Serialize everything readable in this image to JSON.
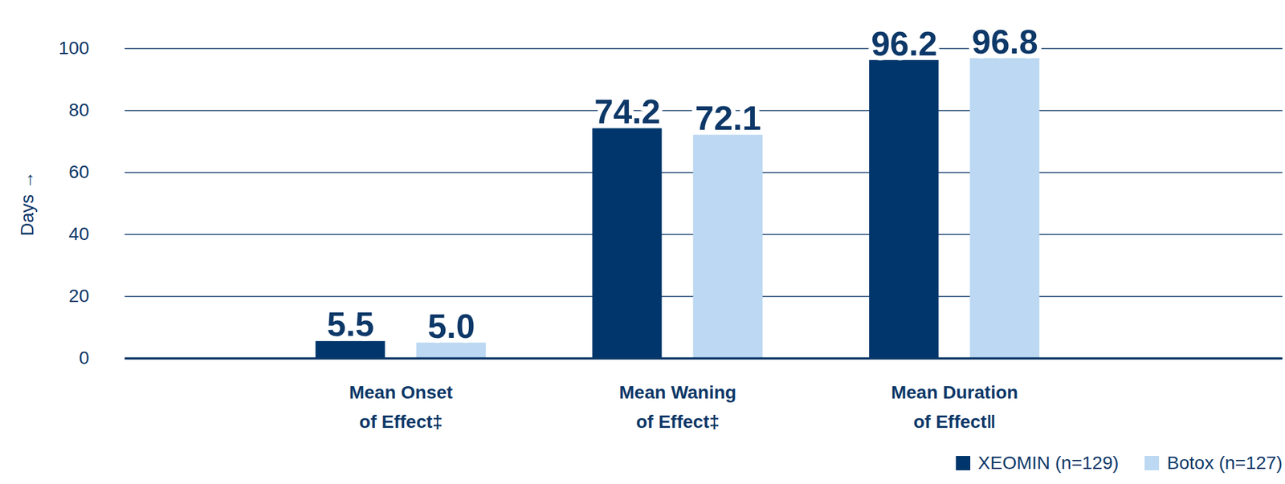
{
  "chart_data": {
    "type": "bar",
    "categories": [
      "Mean Onset\nof Effect‡",
      "Mean Waning\nof Effect‡",
      "Mean Duration\nof Effect‖"
    ],
    "series": [
      {
        "name": "XEOMIN (n=129)",
        "color": "#00366b",
        "values": [
          5.5,
          74.2,
          96.2
        ],
        "value_labels": [
          "5.5",
          "74.2",
          "96.2"
        ]
      },
      {
        "name": "Botox (n=127)",
        "color": "#bcd8f2",
        "values": [
          5.0,
          72.1,
          96.8
        ],
        "value_labels": [
          "5.0",
          "72.1",
          "96.8"
        ]
      }
    ],
    "y_label": "Days",
    "ylim": [
      0,
      100
    ],
    "yticks": [
      0,
      20,
      40,
      60,
      80,
      100
    ],
    "grid": true,
    "data_labels": true,
    "legend": "bottom-right"
  }
}
